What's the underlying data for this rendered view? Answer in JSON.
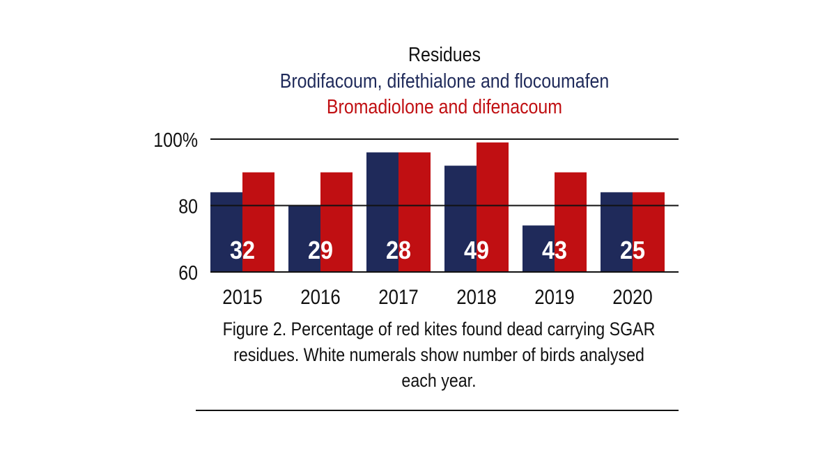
{
  "chart_data": {
    "type": "bar",
    "title": "Residues",
    "categories": [
      "2015",
      "2016",
      "2017",
      "2018",
      "2019",
      "2020"
    ],
    "series": [
      {
        "name": "Brodifacoum, difethialone and flocoumafen",
        "color": "#1f2a5a",
        "values": [
          84,
          80,
          96,
          92,
          74,
          84
        ]
      },
      {
        "name": "Bromadiolone and difenacoum",
        "color": "#c00f12",
        "values": [
          90,
          90,
          96,
          99,
          90,
          84
        ]
      }
    ],
    "data_labels": [
      "32",
      "29",
      "28",
      "49",
      "43",
      "25"
    ],
    "data_label_note": "number of birds analysed each year",
    "y_ticks": [
      {
        "value": 60,
        "label": "60"
      },
      {
        "value": 80,
        "label": "80"
      },
      {
        "value": 100,
        "label": "100%"
      }
    ],
    "ylim": [
      60,
      100
    ],
    "xlabel": "",
    "ylabel": "",
    "grid": true,
    "legend_position": "top-center"
  },
  "caption": "Figure 2. Percentage of red kites found dead carrying SGAR residues. White numerals show number of birds analysed each year."
}
